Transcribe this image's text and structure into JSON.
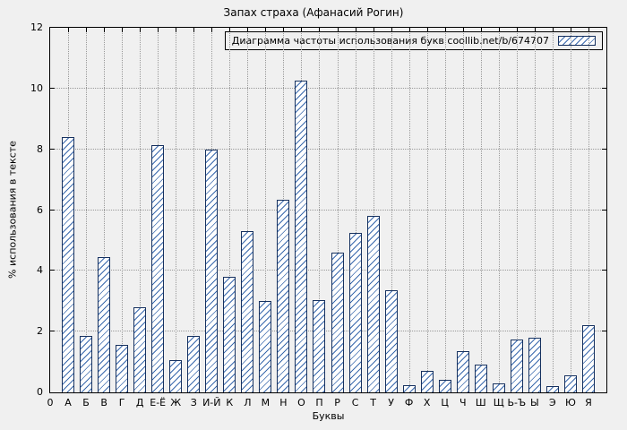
{
  "chart_data": {
    "type": "bar",
    "title": "Запах страха (Афанасий Рогин)",
    "legend": "Диаграмма частоты использования букв coollib.net/b/674707",
    "xlabel": "Буквы",
    "ylabel": "% использования в тексте",
    "origin_label": "0",
    "ylim": [
      0,
      12
    ],
    "yticks": [
      0,
      2,
      4,
      6,
      8,
      10,
      12
    ],
    "grid": true,
    "legend_position": "top-right",
    "categories": [
      "А",
      "Б",
      "В",
      "Г",
      "Д",
      "Е-Ё",
      "Ж",
      "З",
      "И-Й",
      "К",
      "Л",
      "М",
      "Н",
      "О",
      "П",
      "Р",
      "С",
      "Т",
      "У",
      "Ф",
      "Х",
      "Ц",
      "Ч",
      "Ш",
      "Щ",
      "Ь-Ъ",
      "Ы",
      "Э",
      "Ю",
      "Я"
    ],
    "values": [
      8.4,
      1.85,
      4.45,
      1.55,
      2.8,
      8.15,
      1.05,
      1.85,
      8.0,
      3.8,
      5.3,
      3.0,
      6.35,
      10.25,
      3.05,
      4.6,
      5.25,
      5.8,
      3.35,
      0.25,
      0.7,
      0.4,
      1.35,
      0.9,
      0.3,
      1.75,
      1.8,
      0.2,
      0.55,
      2.2
    ],
    "bar_style": {
      "fill": "#ffffff",
      "hatch_color": "#3b6aad",
      "border_color": "#16315f"
    },
    "colors": {
      "background": "#f0f0f0",
      "grid": "#9a9a9a",
      "text": "#000000"
    }
  }
}
